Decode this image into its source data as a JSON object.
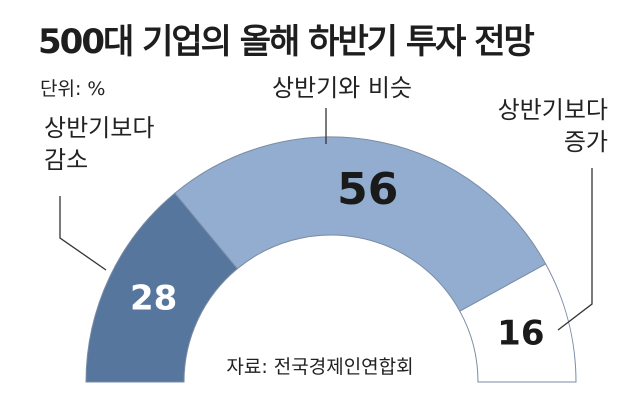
{
  "title": "500대 기업의 올해 하반기 투자 전망",
  "unit": "단위: %",
  "source": "자료: 전국경제인연합회",
  "chart_data": {
    "type": "pie",
    "shape": "semicircle-donut",
    "slices": [
      {
        "label": "상반기보다\n감소",
        "value": 28,
        "color": "#56769e",
        "value_color": "#ffffff"
      },
      {
        "label": "상반기와 비슷",
        "value": 56,
        "color": "#93add0",
        "value_color": "#1a1a1a"
      },
      {
        "label": "상반기보다\n증가",
        "value": 16,
        "color": "#ffffff",
        "value_color": "#1a1a1a"
      }
    ]
  }
}
